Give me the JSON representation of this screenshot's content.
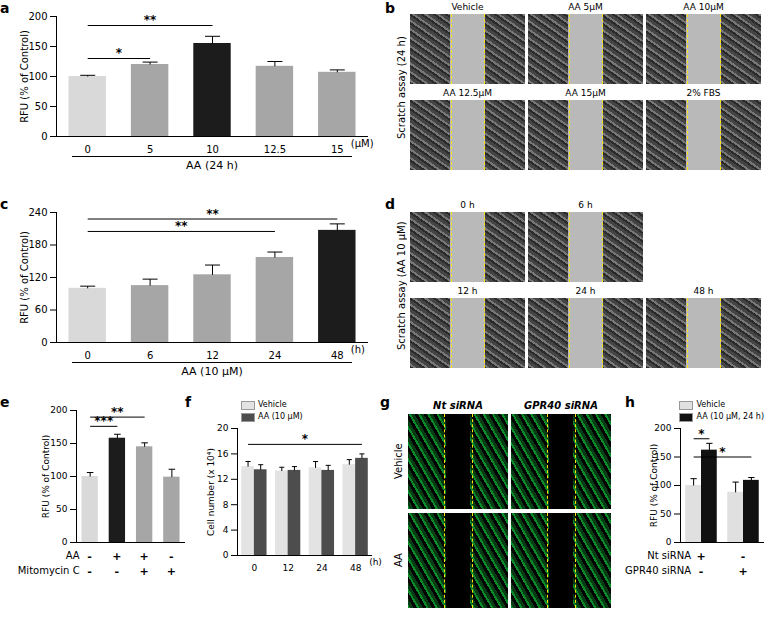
{
  "chart_data": [
    {
      "panel": "a",
      "type": "bar",
      "categories": [
        "0",
        "5",
        "10",
        "12.5",
        "15"
      ],
      "x_label": "(μM)",
      "group_label": "AA (24 h)",
      "y_label": "RFU (% of Control)",
      "values": [
        100,
        120,
        155,
        117,
        107
      ],
      "errors": [
        2,
        4,
        12,
        8,
        4
      ],
      "colors": [
        "#d9d9d9",
        "#a6a6a6",
        "#1c1c1c",
        "#a6a6a6",
        "#a6a6a6"
      ],
      "ylim": [
        0,
        200
      ],
      "yticks": [
        0,
        50,
        100,
        150,
        200
      ],
      "annotations": [
        {
          "from": [
            0,
            0
          ],
          "to": [
            1,
            0
          ],
          "y": 130,
          "text": "*"
        },
        {
          "from": [
            0,
            0
          ],
          "to": [
            2,
            0
          ],
          "y": 185,
          "text": "**"
        }
      ]
    },
    {
      "panel": "b",
      "type": "micrograph",
      "side_label": "Scratch assay (24 h)",
      "tiles": [
        [
          "Vehicle",
          "AA 5μM",
          "AA 10μM"
        ],
        [
          "AA 12.5μM",
          "AA 15μM",
          "2% FBS"
        ]
      ]
    },
    {
      "panel": "c",
      "type": "bar",
      "categories": [
        "0",
        "6",
        "12",
        "24",
        "48"
      ],
      "x_label": "(h)",
      "group_label": "AA (10 μM)",
      "y_label": "RFU (% of Control)",
      "values": [
        100,
        105,
        125,
        157,
        207
      ],
      "errors": [
        4,
        12,
        18,
        10,
        12
      ],
      "colors": [
        "#d9d9d9",
        "#a6a6a6",
        "#a6a6a6",
        "#a6a6a6",
        "#1c1c1c"
      ],
      "ylim": [
        0,
        240
      ],
      "yticks": [
        0,
        60,
        120,
        180,
        240
      ],
      "annotations": [
        {
          "from": [
            0,
            0
          ],
          "to": [
            4,
            0
          ],
          "y": 228,
          "text": "**"
        },
        {
          "from": [
            0,
            0
          ],
          "to": [
            3,
            0
          ],
          "y": 205,
          "text": "**"
        }
      ]
    },
    {
      "panel": "d",
      "type": "micrograph",
      "side_label": "Scratch assay (AA 10 μM)",
      "tiles": [
        [
          "0 h",
          "6 h"
        ],
        [
          "12 h",
          "24 h",
          "48 h"
        ]
      ]
    },
    {
      "panel": "e",
      "type": "bar",
      "categories": [
        null,
        null,
        null,
        null
      ],
      "y_label": "RFU (% of Control)",
      "values": [
        100,
        158,
        145,
        99
      ],
      "errors": [
        6,
        6,
        6,
        12
      ],
      "colors": [
        "#d9d9d9",
        "#1c1c1c",
        "#a6a6a6",
        "#a6a6a6"
      ],
      "ylim": [
        0,
        200
      ],
      "yticks": [
        0,
        50,
        100,
        150,
        200
      ],
      "conditions": [
        {
          "label": "AA",
          "signs": [
            "-",
            "+",
            "+",
            "-"
          ]
        },
        {
          "label": "Mitomycin C",
          "signs": [
            "-",
            "-",
            "+",
            "+"
          ]
        }
      ],
      "annotations": [
        {
          "from": [
            0,
            0
          ],
          "to": [
            1,
            0
          ],
          "y": 176,
          "text": "***"
        },
        {
          "from": [
            0,
            0
          ],
          "to": [
            2,
            0
          ],
          "y": 190,
          "text": "**"
        }
      ]
    },
    {
      "panel": "f",
      "type": "bar",
      "categories": [
        "0",
        "12",
        "24",
        "48"
      ],
      "x_label": "(h)",
      "y_label": "Cell number (x 10⁴)",
      "legend": "top-left",
      "series": [
        {
          "name": "Vehicle",
          "color": "#e3e3e3",
          "values": [
            14,
            13.3,
            13.8,
            14.3
          ],
          "errors": [
            0.8,
            0.6,
            1.0,
            0.8
          ]
        },
        {
          "name": "AA (10 μM)",
          "color": "#4d4d4d",
          "values": [
            13.5,
            13.4,
            13.4,
            15.3
          ],
          "errors": [
            0.8,
            0.6,
            0.8,
            0.7
          ]
        }
      ],
      "ylim": [
        0,
        20
      ],
      "yticks": [
        0,
        4,
        8,
        12,
        16,
        20
      ],
      "annotations": [
        {
          "from": [
            0,
            0
          ],
          "to": [
            3,
            1
          ],
          "y": 17.5,
          "text": "*"
        }
      ]
    },
    {
      "panel": "g",
      "type": "micrograph",
      "columns": [
        "Nt siRNA",
        "GPR40 siRNA"
      ],
      "rows": [
        "Vehicle",
        "AA"
      ]
    },
    {
      "panel": "h",
      "type": "bar",
      "categories": [
        null,
        null
      ],
      "y_label": "RFU (% of Control)",
      "legend": "top-right",
      "series": [
        {
          "name": "Vehicle",
          "color": "#e0e0e0",
          "values": [
            100,
            88
          ],
          "errors": [
            12,
            18
          ]
        },
        {
          "name": "AA (10 μM, 24 h)",
          "color": "#111111",
          "values": [
            162,
            109
          ],
          "errors": [
            12,
            5
          ]
        }
      ],
      "ylim": [
        0,
        200
      ],
      "yticks": [
        0,
        50,
        100,
        150,
        200
      ],
      "conditions": [
        {
          "label": "Nt siRNA",
          "signs": [
            "+",
            "-"
          ]
        },
        {
          "label": "GPR40 siRNA",
          "signs": [
            "-",
            "+"
          ]
        }
      ],
      "annotations": [
        {
          "from": [
            0,
            0
          ],
          "to": [
            0,
            1
          ],
          "y": 182,
          "text": "*"
        },
        {
          "from": [
            0,
            0
          ],
          "to": [
            1,
            1
          ],
          "y": 150,
          "text": "*"
        }
      ]
    }
  ]
}
